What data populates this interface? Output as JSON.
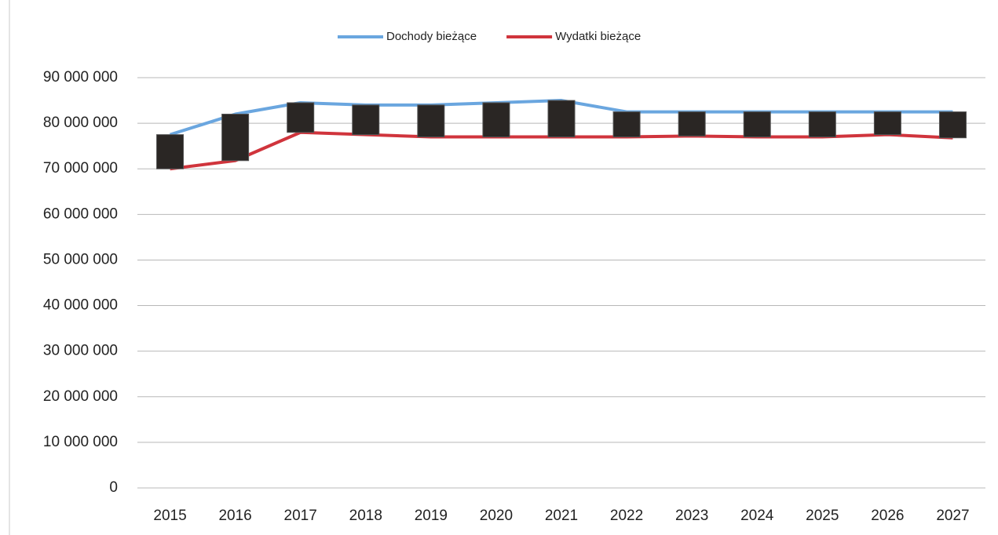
{
  "chart_data": {
    "type": "line",
    "categories": [
      "2015",
      "2016",
      "2017",
      "2018",
      "2019",
      "2020",
      "2021",
      "2022",
      "2023",
      "2024",
      "2025",
      "2026",
      "2027"
    ],
    "series": [
      {
        "name": "Dochody bieżące",
        "color": "#6aa6df",
        "values": [
          77500000,
          82000000,
          84500000,
          84000000,
          84000000,
          84500000,
          85000000,
          82500000,
          82500000,
          82500000,
          82500000,
          82500000,
          82500000
        ]
      },
      {
        "name": "Wydatki bieżące",
        "color": "#d0343c",
        "values": [
          70000000,
          71800000,
          78000000,
          77500000,
          77000000,
          77000000,
          77000000,
          77000000,
          77200000,
          77000000,
          77000000,
          77500000,
          76800000
        ]
      }
    ],
    "updown_bar_color": "#2a2624",
    "ylim": [
      0,
      90000000
    ],
    "yticks": [
      0,
      {
        "value": 10000000,
        "label": "10 000 000"
      },
      {
        "value": 20000000,
        "label": "20 000 000"
      },
      {
        "value": 30000000,
        "label": "30 000 000"
      },
      {
        "value": 40000000,
        "label": "40 000 000"
      },
      {
        "value": 50000000,
        "label": "50 000 000"
      },
      {
        "value": 60000000,
        "label": "60 000 000"
      },
      {
        "value": 70000000,
        "label": "70 000 000"
      },
      {
        "value": 80000000,
        "label": "80 000 000"
      },
      {
        "value": 90000000,
        "label": "90 000 000"
      }
    ],
    "grid": true,
    "legend": "top"
  }
}
